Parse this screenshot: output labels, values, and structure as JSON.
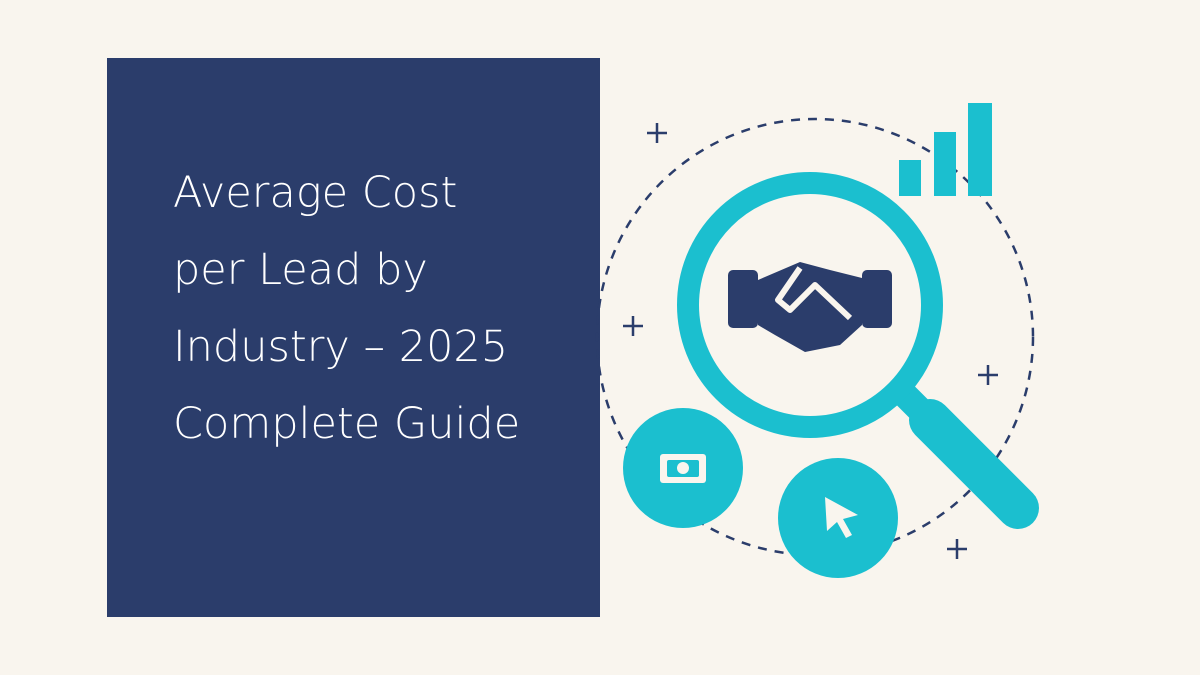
{
  "header": {
    "title_lines": [
      "Average Cost",
      "per Lead by",
      "Industry – 2025",
      "Complete Guide"
    ]
  }
}
